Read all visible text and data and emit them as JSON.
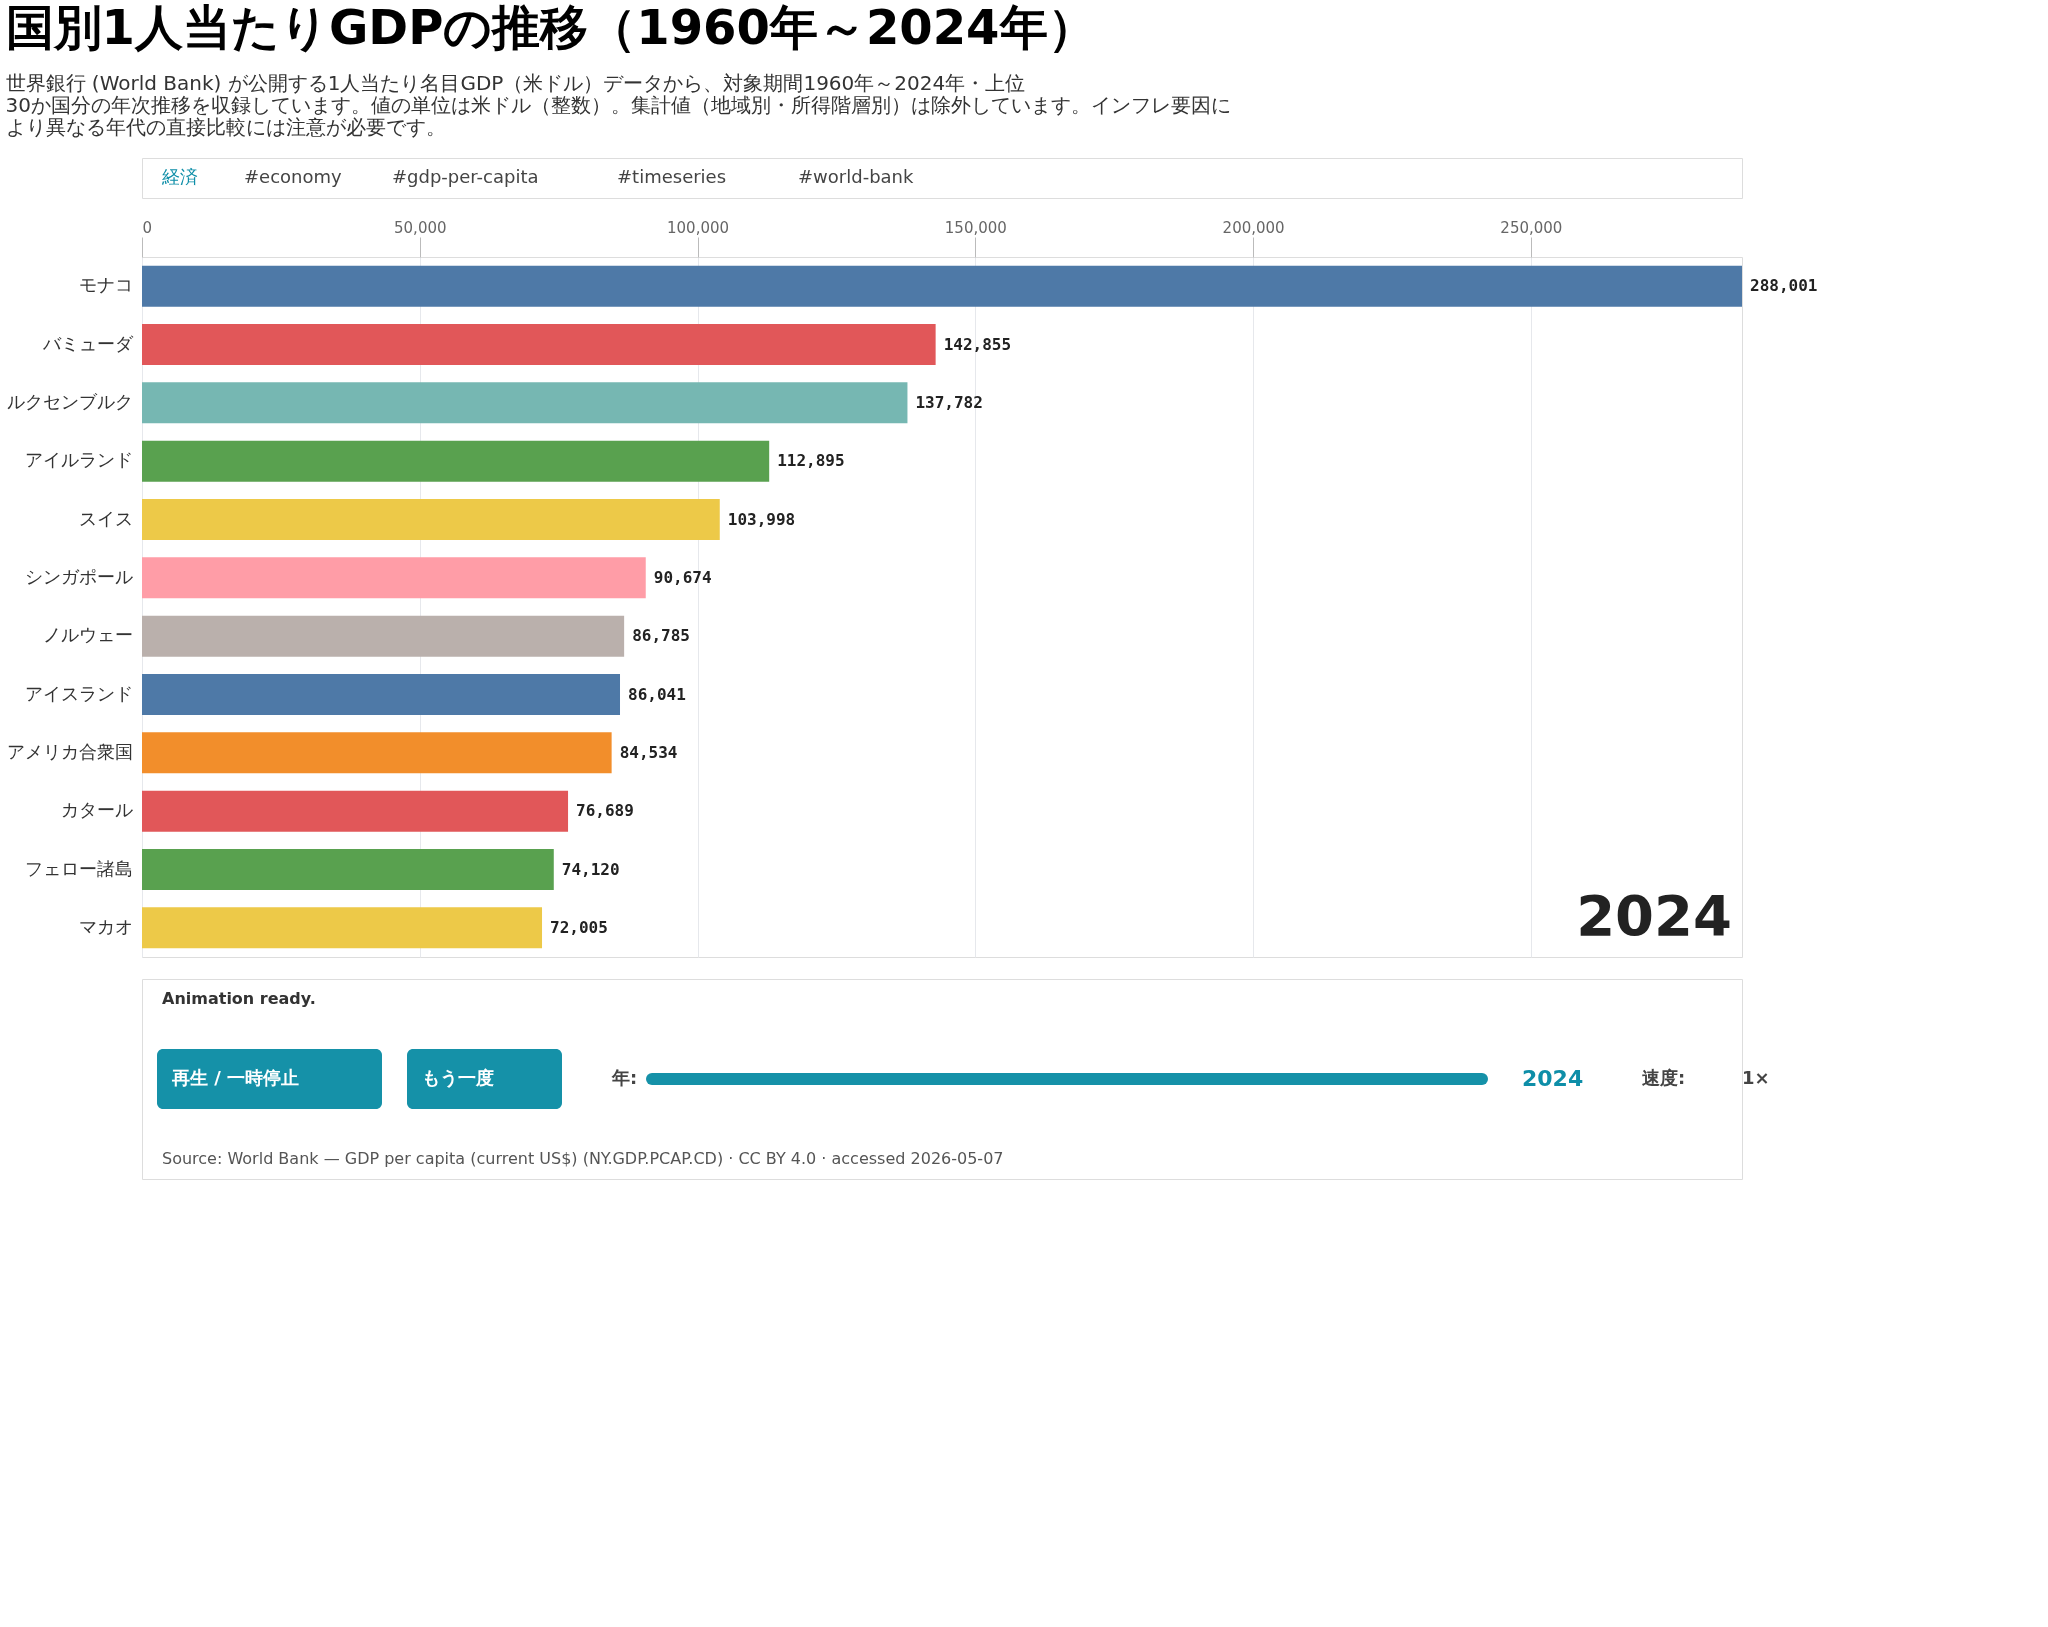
{
  "chart_data": {
    "type": "bar",
    "orientation": "horizontal",
    "title": "国別1人当たりGDPの推移（1960年～2024年）",
    "subtitle": "世界銀行 (World Bank) が公開する1人当たり名目GDP（米ドル）データから、対象期間1960年～2024年・上位30か国分の年次推移を収録しています。値の単位は米ドル（整数）。集計値（地域別・所得階層別）は除外しています。インフレ要因により異なる年代の直接比較には注意が必要です。",
    "categories": [
      "モナコ",
      "バミューダ",
      "ルクセンブルク",
      "アイルランド",
      "スイス",
      "シンガポール",
      "ノルウェー",
      "アイスランド",
      "アメリカ合衆国",
      "カタール",
      "フェロー諸島",
      "マカオ"
    ],
    "values": [
      288001,
      142855,
      137782,
      112895,
      103998,
      90674,
      86785,
      86041,
      84534,
      76689,
      74120,
      72005
    ],
    "colors": [
      "#4e79a7",
      "#e15759",
      "#76b7b2",
      "#59a14f",
      "#edc948",
      "#ff9da7",
      "#bab0ac",
      "#4e79a7",
      "#f28e2b",
      "#e15759",
      "#59a14f",
      "#edc948"
    ],
    "value_labels": [
      "288,001",
      "142,855",
      "137,782",
      "112,895",
      "103,998",
      "90,674",
      "86,785",
      "86,041",
      "84,534",
      "76,689",
      "74,120",
      "72,005"
    ],
    "xlim": [
      0,
      288001
    ],
    "xticks": [
      {
        "value": 0,
        "label": "0"
      },
      {
        "value": 50000,
        "label": "50,000"
      },
      {
        "value": 100000,
        "label": "100,000"
      },
      {
        "value": 150000,
        "label": "150,000"
      },
      {
        "value": 200000,
        "label": "200,000"
      },
      {
        "value": 250000,
        "label": "250,000"
      }
    ],
    "grid": "x",
    "annotations": [
      "経済",
      "#economy",
      "#gdp-per-capita",
      "#timeseries",
      "#world-bank",
      "2024",
      "Animation ready.",
      "再生 / 一時停止",
      "もう一度",
      "年:",
      "2024",
      "速度:",
      "1×",
      "Source: World Bank — GDP per capita (current US$) (NY.GDP.PCAP.CD) · CC BY 4.0 · accessed 2026-05-07"
    ]
  }
}
